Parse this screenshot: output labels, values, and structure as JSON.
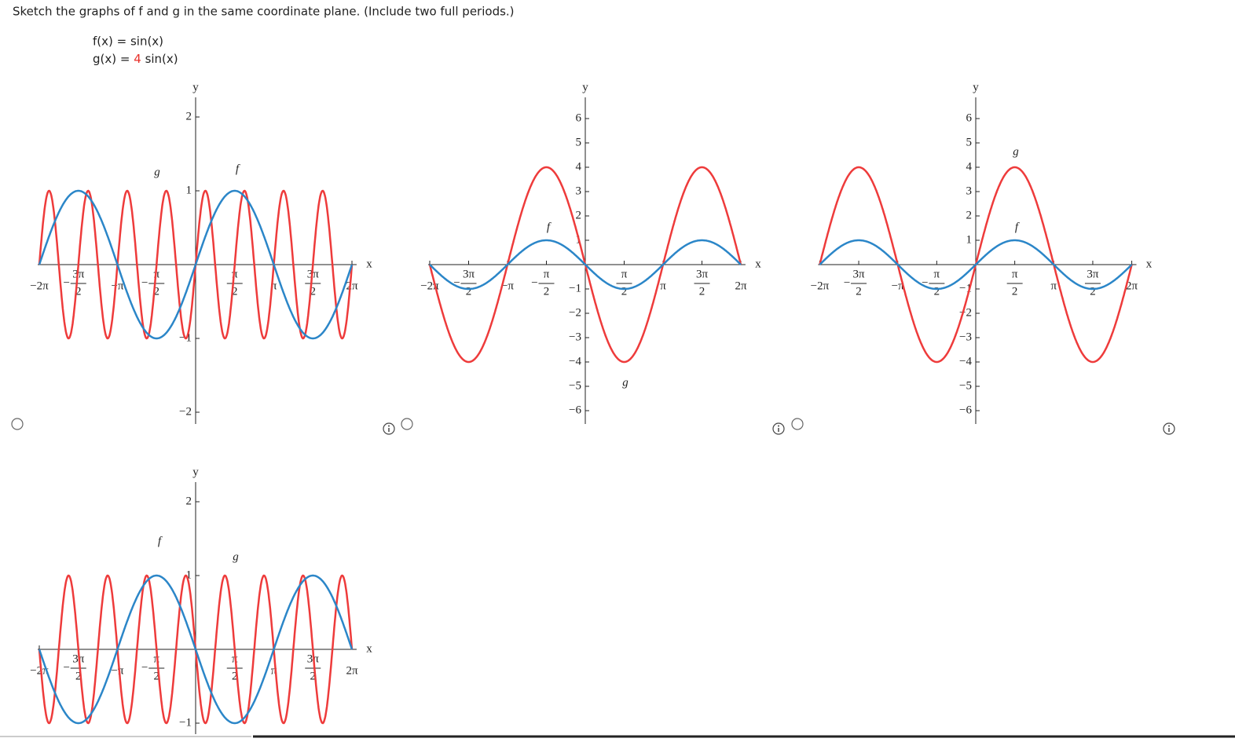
{
  "question": "Sketch the graphs of f and g in the same coordinate plane. (Include two full periods.)",
  "f_def": "f(x) = sin(x)",
  "g_lhs": "g(x) =",
  "g_coef": "4",
  "g_rhs": "sin(x)",
  "options": [
    {
      "x_label": "x",
      "y_label": "y",
      "f_label": "f",
      "g_label": "g",
      "x_ticks": [
        {
          "text": "−2π"
        },
        {
          "sign": "−",
          "num": "3π",
          "den": "2"
        },
        {
          "text": "−π"
        },
        {
          "sign": "−",
          "num": "π",
          "den": "2"
        },
        {
          "num": "π",
          "den": "2"
        },
        {
          "text": "π"
        },
        {
          "num": "3π",
          "den": "2"
        },
        {
          "text": "2π"
        }
      ],
      "y_ticks": [
        2,
        1,
        {
          "value": -1,
          "label": "−1"
        },
        {
          "value": -2,
          "label": "−2"
        }
      ]
    },
    {
      "x_label": "x",
      "y_label": "y",
      "f_label": "f",
      "g_label": "g",
      "x_ticks": [
        {
          "text": "−2π"
        },
        {
          "sign": "−",
          "num": "3π",
          "den": "2"
        },
        {
          "text": "−π"
        },
        {
          "sign": "−",
          "num": "π",
          "den": "2"
        },
        {
          "num": "π",
          "den": "2"
        },
        {
          "text": "π"
        },
        {
          "num": "3π",
          "den": "2"
        },
        {
          "text": "2π"
        }
      ],
      "y_ticks": [
        6,
        5,
        4,
        3,
        2,
        1,
        {
          "value": -1,
          "label": "−1"
        },
        {
          "value": -2,
          "label": "−2"
        },
        {
          "value": -3,
          "label": "−3"
        },
        {
          "value": -4,
          "label": "−4"
        },
        {
          "value": -5,
          "label": "−5"
        },
        {
          "value": -6,
          "label": "−6"
        }
      ]
    },
    {
      "x_label": "x",
      "y_label": "y",
      "f_label": "f",
      "g_label": "g",
      "x_ticks": [
        {
          "text": "−2π"
        },
        {
          "sign": "−",
          "num": "3π",
          "den": "2"
        },
        {
          "text": "−π"
        },
        {
          "sign": "−",
          "num": "π",
          "den": "2"
        },
        {
          "num": "π",
          "den": "2"
        },
        {
          "text": "π"
        },
        {
          "num": "3π",
          "den": "2"
        },
        {
          "text": "2π"
        }
      ],
      "y_ticks": [
        6,
        5,
        4,
        3,
        2,
        1,
        {
          "value": -1,
          "label": "−1"
        },
        {
          "value": -2,
          "label": "−2"
        },
        {
          "value": -3,
          "label": "−3"
        },
        {
          "value": -4,
          "label": "−4"
        },
        {
          "value": -5,
          "label": "−5"
        },
        {
          "value": -6,
          "label": "−6"
        }
      ]
    },
    {
      "x_label": "x",
      "y_label": "y",
      "f_label": "f",
      "g_label": "g",
      "x_ticks": [
        {
          "text": "−2π"
        },
        {
          "sign": "−",
          "num": "3π",
          "den": "2"
        },
        {
          "text": "−π"
        },
        {
          "sign": "−",
          "num": "π",
          "den": "2"
        },
        {
          "num": "π",
          "den": "2"
        },
        {
          "text": "π"
        },
        {
          "num": "3π",
          "den": "2"
        },
        {
          "text": "2π"
        }
      ],
      "y_ticks": [
        2,
        1,
        {
          "value": -1,
          "label": "−1"
        }
      ]
    }
  ]
}
